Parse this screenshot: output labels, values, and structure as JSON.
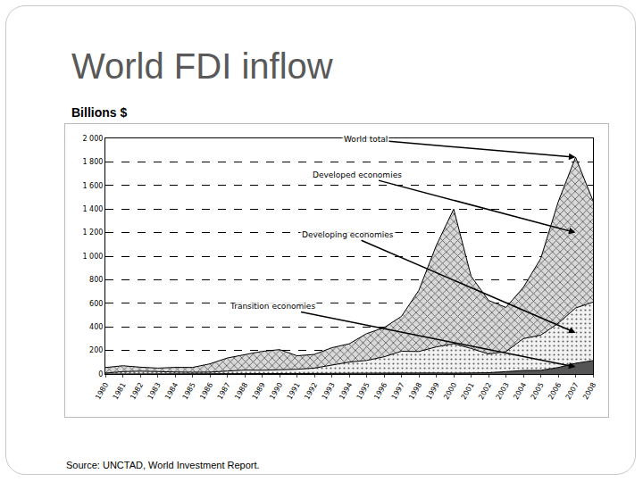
{
  "chart_data": {
    "type": "area",
    "title": "World FDI inflow",
    "ylabel": "Billions $",
    "source": "Source: UNCTAD, World Investment Report.",
    "categories": [
      "1980",
      "1981",
      "1982",
      "1983",
      "1984",
      "1985",
      "1986",
      "1987",
      "1988",
      "1989",
      "1990",
      "1991",
      "1992",
      "1993",
      "1994",
      "1995",
      "1996",
      "1997",
      "1998",
      "1999",
      "2000",
      "2001",
      "2002",
      "2003",
      "2004",
      "2005",
      "2006",
      "2007",
      "2008"
    ],
    "series": [
      {
        "name": "Transition economies",
        "color": "#555555",
        "values": [
          0,
          0,
          0,
          0,
          0,
          0,
          0,
          0,
          0,
          0,
          0,
          0,
          2,
          5,
          6,
          7,
          7,
          11,
          10,
          9,
          7,
          9,
          11,
          20,
          30,
          31,
          55,
          91,
          114
        ]
      },
      {
        "name": "Developing economies",
        "color": "#f2f2f2",
        "values": [
          8,
          20,
          24,
          18,
          17,
          15,
          16,
          25,
          33,
          32,
          35,
          40,
          48,
          68,
          95,
          108,
          139,
          182,
          181,
          221,
          250,
          208,
          159,
          170,
          270,
          299,
          375,
          469,
          496
        ]
      },
      {
        "name": "Developed economies",
        "color": "#d9d9d9",
        "values": [
          47,
          50,
          34,
          32,
          39,
          41,
          70,
          111,
          131,
          160,
          172,
          115,
          116,
          150,
          155,
          228,
          247,
          296,
          519,
          860,
          1143,
          613,
          455,
          375,
          435,
          650,
          1030,
          1280,
          860
        ]
      }
    ],
    "stacked": true,
    "ylim": [
      0,
      2000
    ],
    "yticks": [
      0,
      200,
      400,
      600,
      800,
      {
        "value": 1000,
        "label": "1 000"
      },
      {
        "value": 1200,
        "label": "1 200"
      },
      {
        "value": 1400,
        "label": "1 400"
      },
      {
        "value": 1600,
        "label": "1 600"
      },
      {
        "value": 1800,
        "label": "1 800"
      },
      {
        "value": 2000,
        "label": "2 000"
      }
    ],
    "grid": true,
    "annotations": [
      {
        "text": "World total",
        "x": "2007",
        "y": 1840
      },
      {
        "text": "Developed economies",
        "x": "2007",
        "y": 1200
      },
      {
        "text": "Developing economies",
        "x": "2007",
        "y": 350
      },
      {
        "text": "Transition economies",
        "x": "2007",
        "y": 60
      }
    ]
  }
}
